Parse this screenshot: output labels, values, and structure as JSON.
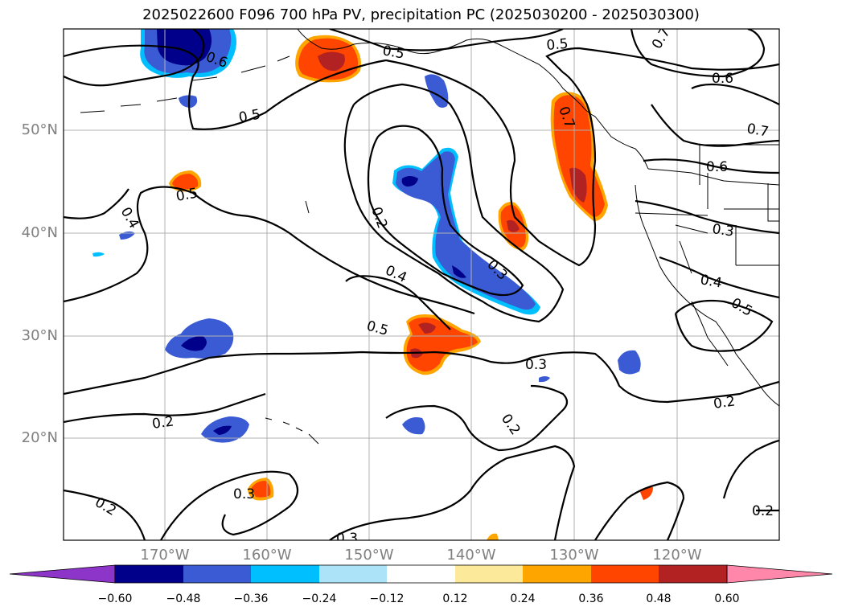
{
  "title": "2025022600 F096 700 hPa PV, precipitation PC (2025030200 - 2025030300)",
  "lat_labels": [
    "50°N",
    "40°N",
    "30°N",
    "20°N"
  ],
  "lon_labels": [
    "170°W",
    "160°W",
    "150°W",
    "140°W",
    "130°W",
    "120°W"
  ],
  "contour_labels": [
    "0.6",
    "0.5",
    "0.5",
    "0.7",
    "0.6",
    "0.5",
    "0.7",
    "0.7",
    "0.6",
    "0.5",
    "0.4",
    "0.2",
    "0.3",
    "0.4",
    "0.5",
    "0.3",
    "0.3",
    "0.4",
    "0.5",
    "0.2",
    "0.2",
    "0.2",
    "0.3",
    "0.2",
    "0.2",
    "0.3"
  ],
  "colorbar": {
    "ticks": [
      "−0.60",
      "−0.48",
      "−0.36",
      "−0.24",
      "−0.12",
      "0.12",
      "0.24",
      "0.36",
      "0.48",
      "0.60"
    ],
    "colors": [
      "#8e35c9",
      "#00008b",
      "#3a5bd3",
      "#00bfff",
      "#ade3f8",
      "#ffffff",
      "#fde99a",
      "#ffa500",
      "#ff4500",
      "#b22222",
      "#ff88aa"
    ]
  },
  "colors": {
    "neg_dark": "#00008b",
    "neg_mid": "#3a5bd3",
    "neg_light": "#00bfff",
    "pos_light": "#ffa500",
    "pos_mid": "#ff4500",
    "pos_dark": "#b22222",
    "grid": "#b0b0b0",
    "axis_label": "#808080"
  }
}
